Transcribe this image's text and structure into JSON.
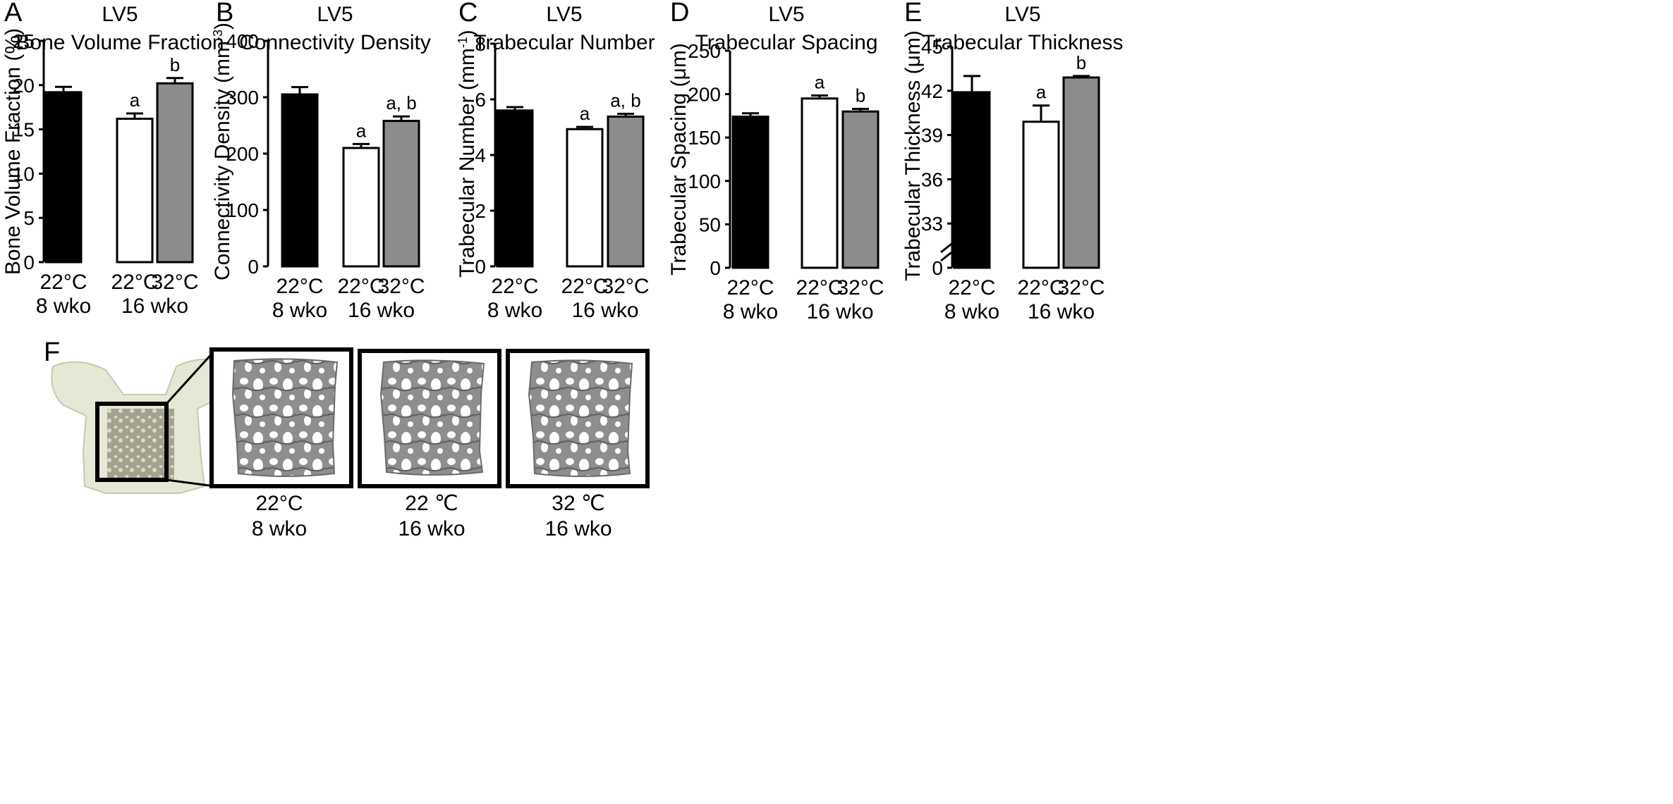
{
  "chart_data": [
    {
      "panel": "A",
      "type": "bar",
      "title": "LV5",
      "subtitle": "Bone Volume Fraction",
      "ylabel": "Bone Volume Fraction (%)",
      "ylim": [
        0,
        25
      ],
      "yticks": [
        "0",
        "5",
        "10",
        "15",
        "20",
        "25"
      ],
      "axis_break": false,
      "bars": [
        {
          "value": 19.2,
          "error": 0.6,
          "fill": "#000000",
          "temp": "22°C",
          "sig": ""
        },
        {
          "value": 16.2,
          "error": 0.6,
          "fill": "#ffffff",
          "temp": "22°C",
          "sig": "a"
        },
        {
          "value": 20.2,
          "error": 0.6,
          "fill": "#8c8c8c",
          "temp": "32°C",
          "sig": "b"
        }
      ],
      "groups": [
        "8 wko",
        "16 wko"
      ]
    },
    {
      "panel": "B",
      "type": "bar",
      "title": "LV5",
      "subtitle": "Connectivity Density",
      "ylabel": "Connectivity Density (mm",
      "ylabel_sup": "-3",
      "ylabel_end": ")",
      "ylim": [
        0,
        400
      ],
      "yticks": [
        "0",
        "100",
        "200",
        "300",
        "400"
      ],
      "axis_break": false,
      "bars": [
        {
          "value": 305,
          "error": 13,
          "fill": "#000000",
          "temp": "22°C",
          "sig": ""
        },
        {
          "value": 210,
          "error": 7,
          "fill": "#ffffff",
          "temp": "22°C",
          "sig": "a"
        },
        {
          "value": 258,
          "error": 8,
          "fill": "#8c8c8c",
          "temp": "32°C",
          "sig": "a, b"
        }
      ],
      "groups": [
        "8 wko",
        "16 wko"
      ]
    },
    {
      "panel": "C",
      "type": "bar",
      "title": "LV5",
      "subtitle": "Trabecular Number",
      "ylabel": "Trabecular Number (mm",
      "ylabel_sup": "-1",
      "ylabel_end": ")",
      "ylim": [
        0,
        8
      ],
      "yticks": [
        "0",
        "2",
        "4",
        "6",
        "8"
      ],
      "axis_break": false,
      "bars": [
        {
          "value": 5.6,
          "error": 0.12,
          "fill": "#000000",
          "temp": "22°C",
          "sig": ""
        },
        {
          "value": 4.93,
          "error": 0.08,
          "fill": "#ffffff",
          "temp": "22°C",
          "sig": "a"
        },
        {
          "value": 5.38,
          "error": 0.1,
          "fill": "#8c8c8c",
          "temp": "32°C",
          "sig": "a, b"
        }
      ],
      "groups": [
        "8 wko",
        "16 wko"
      ]
    },
    {
      "panel": "D",
      "type": "bar",
      "title": "LV5",
      "subtitle": "Trabecular Spacing",
      "ylabel": "Trabecular Spacing (μm)",
      "ylim": [
        0,
        250
      ],
      "yticks": [
        "0",
        "50",
        "100",
        "150",
        "200",
        "250"
      ],
      "axis_break": false,
      "bars": [
        {
          "value": 174,
          "error": 4,
          "fill": "#000000",
          "temp": "22°C",
          "sig": ""
        },
        {
          "value": 195,
          "error": 3.5,
          "fill": "#ffffff",
          "temp": "22°C",
          "sig": "a"
        },
        {
          "value": 180,
          "error": 3,
          "fill": "#8c8c8c",
          "temp": "32°C",
          "sig": "b"
        }
      ],
      "groups": [
        "8 wko",
        "16 wko"
      ]
    },
    {
      "panel": "E",
      "type": "bar",
      "title": "LV5",
      "subtitle": "Trabecular Thickness",
      "ylabel": "Trabecular Thickness (μm)",
      "ylim": [
        30,
        45
      ],
      "yticks": [
        "0",
        "33",
        "36",
        "39",
        "42",
        "45"
      ],
      "axis_break": true,
      "bars": [
        {
          "value": 41.9,
          "error": 1.1,
          "fill": "#000000",
          "temp": "22°C",
          "sig": ""
        },
        {
          "value": 39.9,
          "error": 1.1,
          "fill": "#ffffff",
          "temp": "22°C",
          "sig": "a"
        },
        {
          "value": 42.9,
          "error": 0.1,
          "fill": "#8c8c8c",
          "temp": "32°C",
          "sig": "b"
        }
      ],
      "groups": [
        "8 wko",
        "16 wko"
      ]
    }
  ],
  "panel_f": {
    "letter": "F",
    "captions": [
      {
        "temp": "22°C",
        "group": "8 wko"
      },
      {
        "temp": "22 ℃",
        "group": "16 wko"
      },
      {
        "temp": "32 ℃",
        "group": "16 wko"
      }
    ]
  }
}
